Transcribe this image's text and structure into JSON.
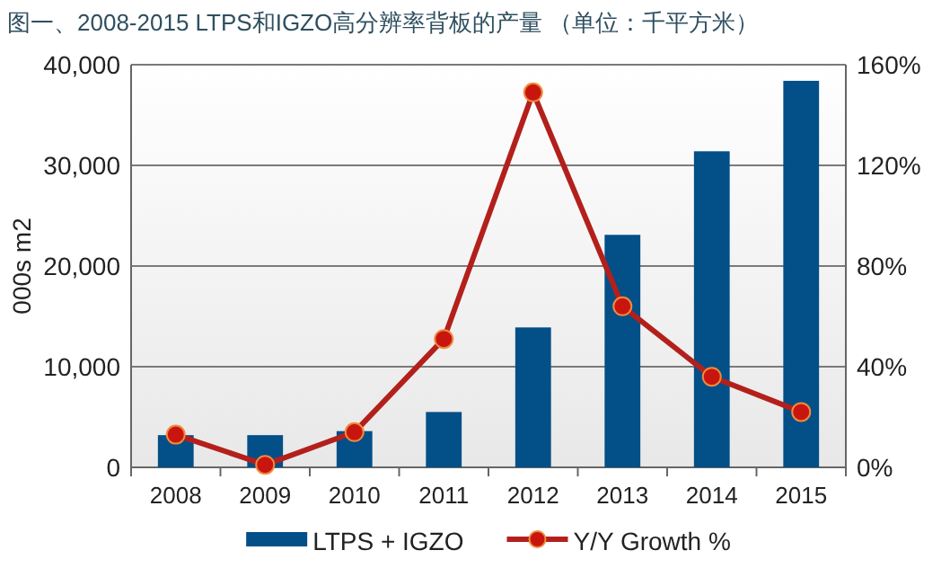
{
  "chart_data": {
    "type": "bar",
    "title": "图一、2008-2015 LTPS和IGZO高分辨率背板的产量 （单位：千平方米）",
    "ylabel": "000s m2",
    "categories": [
      "2008",
      "2009",
      "2010",
      "2011",
      "2012",
      "2013",
      "2014",
      "2015"
    ],
    "series": [
      {
        "name": "LTPS + IGZO",
        "color": "#034f88",
        "values": [
          3200,
          3200,
          3600,
          5500,
          13900,
          23100,
          31400,
          38400
        ]
      },
      {
        "name": "Y/Y Growth %",
        "type": "line",
        "axis": "y2",
        "color": "#b3201c",
        "marker": "circle",
        "values": [
          13,
          1,
          14,
          51,
          149,
          64,
          36,
          22
        ]
      }
    ],
    "ylim": [
      0,
      40000
    ],
    "yticks": [
      {
        "value": 0,
        "label": "0"
      },
      {
        "value": 10000,
        "label": "10,000"
      },
      {
        "value": 20000,
        "label": "20,000"
      },
      {
        "value": 30000,
        "label": "30,000"
      },
      {
        "value": 40000,
        "label": "40,000"
      }
    ],
    "y2lim": [
      0,
      160
    ],
    "y2ticks": [
      {
        "value": 0,
        "label": "0%"
      },
      {
        "value": 40,
        "label": "40%"
      },
      {
        "value": 80,
        "label": "80%"
      },
      {
        "value": 120,
        "label": "120%"
      },
      {
        "value": 160,
        "label": "160%"
      }
    ],
    "grid": "y",
    "legend": "bottom"
  }
}
